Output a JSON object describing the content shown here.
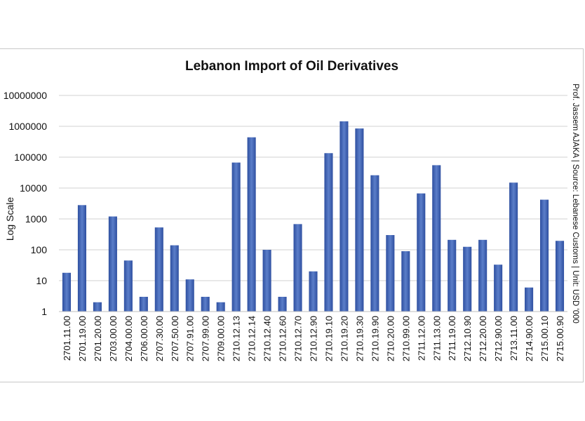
{
  "chart_data": {
    "type": "bar",
    "title": "Lebanon Import of Oil Derivatives",
    "xlabel": "",
    "ylabel": "Log Scale",
    "yscale": "log",
    "ylim": [
      1,
      10000000
    ],
    "yticks": [
      "1",
      "10",
      "100",
      "1000",
      "10000",
      "100000",
      "1000000",
      "10000000"
    ],
    "grid": true,
    "legend": "none",
    "bar_color": "#2e4fa0",
    "bar_color_light": "#5b7ec9",
    "side_note": "Prof. Jassem AJAKA | Source: Lebanese Customs | Unit: USD '000",
    "categories": [
      "2701.11.00",
      "2701.19.00",
      "2701.20.00",
      "2703.00.00",
      "2704.00.00",
      "2706.00.00",
      "2707.30.00",
      "2707.50.00",
      "2707.91.00",
      "2707.99.00",
      "2709.00.00",
      "2710.12.13",
      "2710.12.14",
      "2710.12.40",
      "2710.12.60",
      "2710.12.70",
      "2710.12.90",
      "2710.19.10",
      "2710.19.20",
      "2710.19.30",
      "2710.19.90",
      "2710.20.00",
      "2710.99.00",
      "2711.12.00",
      "2711.13.00",
      "2711.19.00",
      "2712.10.90",
      "2712.20.00",
      "2712.90.00",
      "2713.11.00",
      "2714.90.00",
      "2715.00.10",
      "2715.00.90"
    ],
    "values": [
      18,
      2800,
      2,
      1200,
      45,
      3,
      530,
      140,
      11,
      3,
      2,
      67000,
      440000,
      100,
      3,
      680,
      20,
      135000,
      1450000,
      850000,
      26000,
      300,
      90,
      6700,
      55000,
      210,
      125,
      210,
      33,
      15000,
      6,
      4200,
      195
    ]
  }
}
